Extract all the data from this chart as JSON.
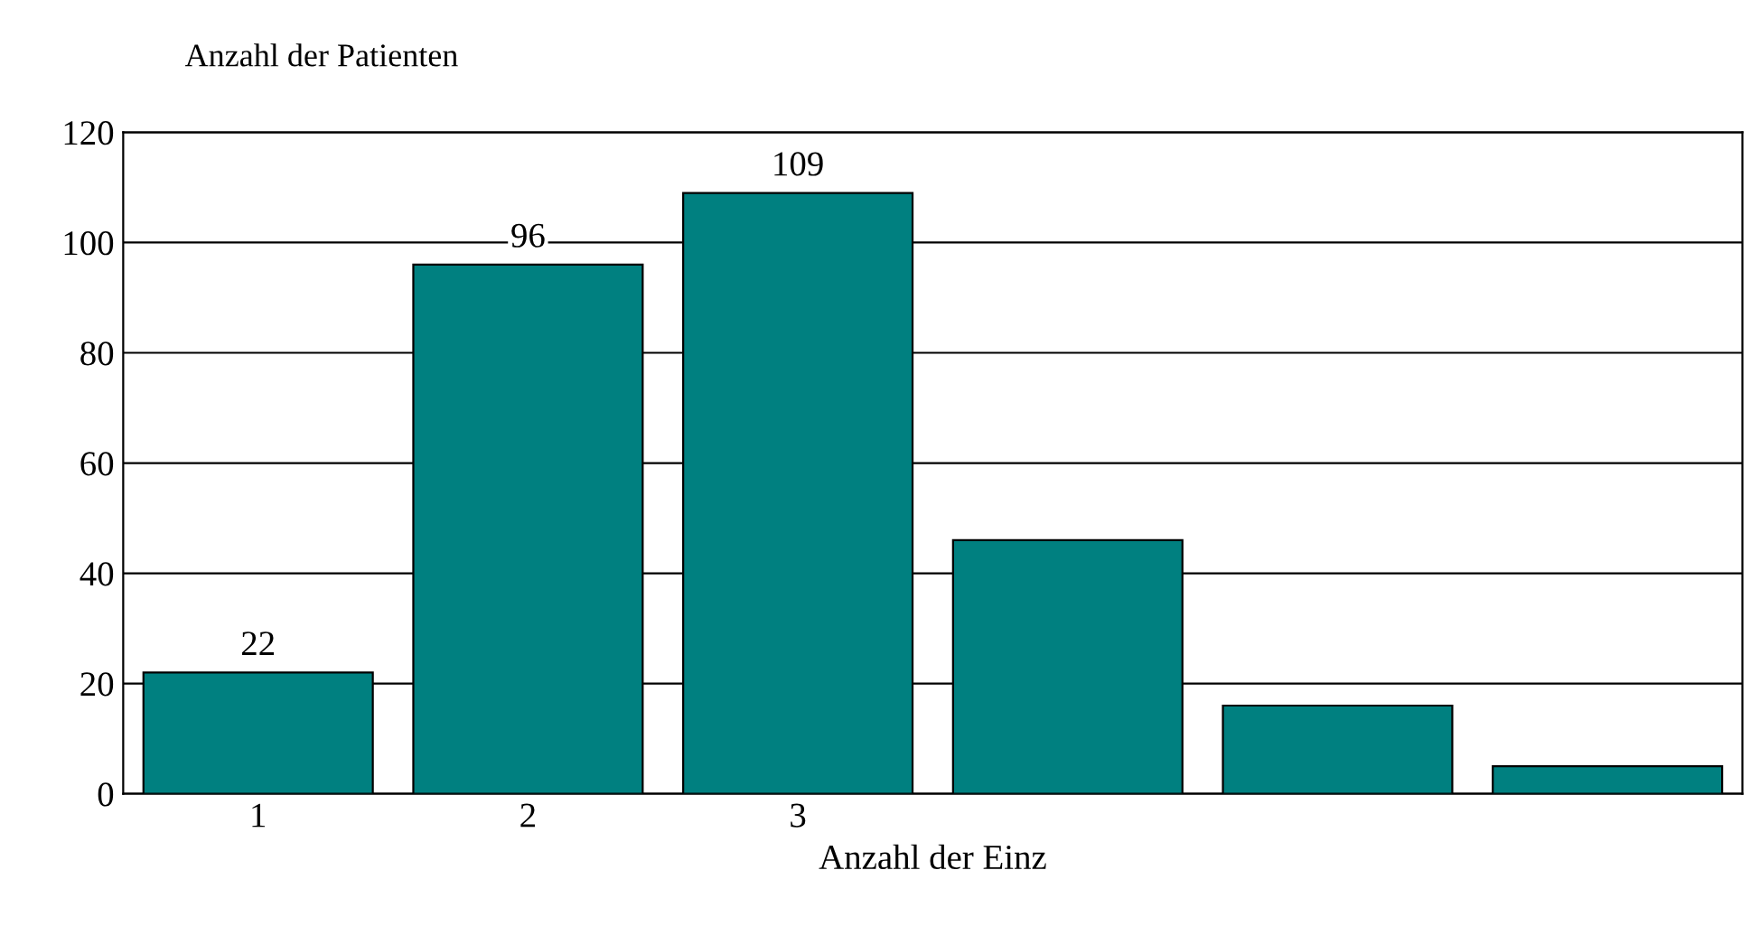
{
  "chart_data": {
    "type": "bar",
    "ylabel": "Anzahl der Patienten",
    "xlabel": "Anzahl der Einz",
    "categories": [
      "1",
      "2",
      "3",
      null,
      null,
      null
    ],
    "values": [
      22,
      96,
      109,
      46,
      16,
      5
    ],
    "value_labels": [
      "22",
      "96",
      "109",
      null,
      null,
      null
    ],
    "color": "#008080",
    "ylim": [
      0,
      120
    ],
    "yticks": [
      0,
      20,
      40,
      60,
      80,
      100,
      120
    ],
    "grid": "y"
  }
}
